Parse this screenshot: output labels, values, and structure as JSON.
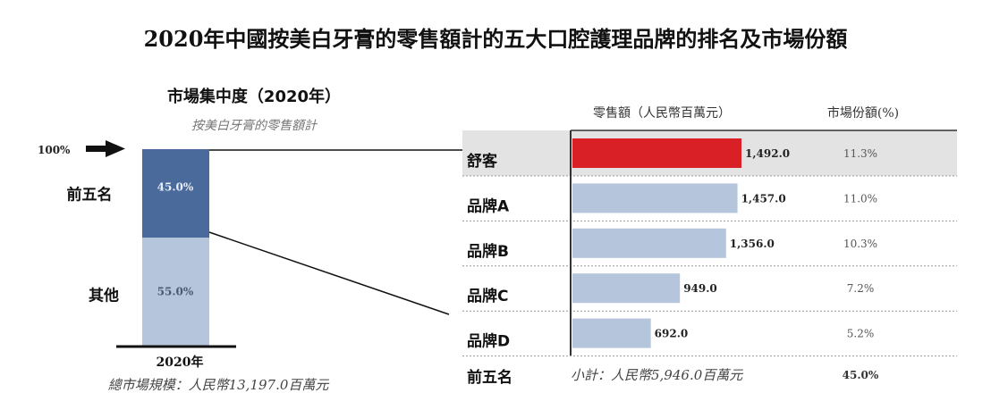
{
  "title": "2020年中國按美白牙膏的零售額計的五大口腔護理品牌的排名及市場份額",
  "chart_data": [
    {
      "type": "bar",
      "stacked": true,
      "title": "市場集中度（2020年）",
      "subtitle": "按美白牙膏的零售額計",
      "categories": [
        "2020年"
      ],
      "top_marker": "100%",
      "series": [
        {
          "name": "前五名",
          "values": [
            45.0
          ],
          "label": "45.0%",
          "color": "#4a6a9c"
        },
        {
          "name": "其他",
          "values": [
            55.0
          ],
          "label": "55.0%",
          "color": "#b4c5dc"
        }
      ],
      "footnote": "總市場規模：人民幣13,197.0百萬元"
    },
    {
      "type": "bar",
      "orientation": "horizontal",
      "value_header": "零售額（人民幣百萬元）",
      "share_header": "市場份額(%)",
      "categories": [
        "舒客",
        "品牌A",
        "品牌B",
        "品牌C",
        "品牌D"
      ],
      "values": [
        1492.0,
        1457.0,
        1356.0,
        949.0,
        692.0
      ],
      "value_labels": [
        "1,492.0",
        "1,457.0",
        "1,356.0",
        "949.0",
        "692.0"
      ],
      "shares": [
        "11.3%",
        "11.0%",
        "10.3%",
        "7.2%",
        "5.2%"
      ],
      "highlight_color": "#d92026",
      "bar_color": "#b4c5dc",
      "highlight_row_bg": "#e3e3e3",
      "total": {
        "label": "前五名",
        "subtotal": "小計：人民幣5,946.0百萬元",
        "share": "45.0%"
      }
    }
  ]
}
